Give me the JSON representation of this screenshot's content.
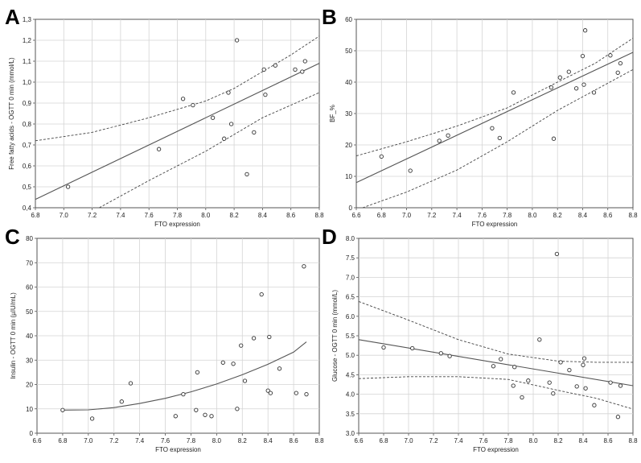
{
  "chart_data": [
    {
      "panel": "A",
      "type": "scatter",
      "xlabel": "FTO expression",
      "ylabel": "Free fatty acids - OGTT 0 min (mmol/L)",
      "xlim": [
        6.8,
        8.8
      ],
      "ylim": [
        0.4,
        1.3
      ],
      "xticks": [
        "6.8",
        "7.0",
        "7.2",
        "7.4",
        "7.6",
        "7.8",
        "8.0",
        "8.2",
        "8.4",
        "8.6",
        "8.8"
      ],
      "yticks": [
        "0,4",
        "0,5",
        "0,6",
        "0,7",
        "0,8",
        "0,9",
        "1,0",
        "1,1",
        "1,2",
        "1,3"
      ],
      "grid": true,
      "points": [
        {
          "x": 7.03,
          "y": 0.5
        },
        {
          "x": 7.67,
          "y": 0.68
        },
        {
          "x": 7.84,
          "y": 0.92
        },
        {
          "x": 7.91,
          "y": 0.89
        },
        {
          "x": 8.05,
          "y": 0.83
        },
        {
          "x": 8.13,
          "y": 0.73
        },
        {
          "x": 8.16,
          "y": 0.95
        },
        {
          "x": 8.18,
          "y": 0.8
        },
        {
          "x": 8.22,
          "y": 1.2
        },
        {
          "x": 8.29,
          "y": 0.56
        },
        {
          "x": 8.34,
          "y": 0.76
        },
        {
          "x": 8.41,
          "y": 1.06
        },
        {
          "x": 8.42,
          "y": 0.94
        },
        {
          "x": 8.49,
          "y": 1.08
        },
        {
          "x": 8.63,
          "y": 1.06
        },
        {
          "x": 8.68,
          "y": 1.05
        },
        {
          "x": 8.7,
          "y": 1.1
        }
      ],
      "fit": {
        "x": [
          6.8,
          8.8
        ],
        "y": [
          0.44,
          1.09
        ]
      },
      "ci_upper": {
        "x": [
          6.8,
          7.2,
          7.6,
          8.0,
          8.2,
          8.4,
          8.6,
          8.8
        ],
        "y": [
          0.72,
          0.76,
          0.83,
          0.91,
          0.97,
          1.05,
          1.13,
          1.22
        ]
      },
      "ci_lower": {
        "x": [
          7.25,
          7.6,
          8.0,
          8.2,
          8.4,
          8.6,
          8.8
        ],
        "y": [
          0.4,
          0.53,
          0.67,
          0.75,
          0.83,
          0.89,
          0.95
        ]
      }
    },
    {
      "panel": "B",
      "type": "scatter",
      "xlabel": "FTO expression",
      "ylabel": "BF_%",
      "xlim": [
        6.6,
        8.8
      ],
      "ylim": [
        0,
        60
      ],
      "xticks": [
        "6.6",
        "6.8",
        "7.0",
        "7.2",
        "7.4",
        "7.6",
        "7.8",
        "8.0",
        "8.2",
        "8.4",
        "8.6",
        "8.8"
      ],
      "yticks": [
        "0",
        "10",
        "20",
        "30",
        "40",
        "50",
        "60"
      ],
      "grid": true,
      "points": [
        {
          "x": 6.8,
          "y": 16.3
        },
        {
          "x": 7.03,
          "y": 11.8
        },
        {
          "x": 7.26,
          "y": 21.3
        },
        {
          "x": 7.33,
          "y": 23.0
        },
        {
          "x": 7.68,
          "y": 25.3
        },
        {
          "x": 7.74,
          "y": 22.2
        },
        {
          "x": 7.85,
          "y": 36.7
        },
        {
          "x": 8.15,
          "y": 38.3
        },
        {
          "x": 8.17,
          "y": 22.0
        },
        {
          "x": 8.22,
          "y": 41.5
        },
        {
          "x": 8.29,
          "y": 43.3
        },
        {
          "x": 8.35,
          "y": 38.0
        },
        {
          "x": 8.4,
          "y": 48.3
        },
        {
          "x": 8.41,
          "y": 39.2
        },
        {
          "x": 8.42,
          "y": 56.5
        },
        {
          "x": 8.49,
          "y": 36.7
        },
        {
          "x": 8.62,
          "y": 48.5
        },
        {
          "x": 8.68,
          "y": 43.0
        },
        {
          "x": 8.7,
          "y": 46.0
        }
      ],
      "fit": {
        "x": [
          6.6,
          8.8
        ],
        "y": [
          8.0,
          49.5
        ]
      },
      "ci_upper": {
        "x": [
          6.6,
          7.0,
          7.4,
          7.8,
          8.2,
          8.5,
          8.8
        ],
        "y": [
          16.5,
          21.0,
          26.0,
          31.8,
          40.0,
          46.0,
          54.0
        ]
      },
      "ci_lower": {
        "x": [
          6.65,
          7.0,
          7.4,
          7.8,
          8.2,
          8.5,
          8.8
        ],
        "y": [
          0.0,
          5.0,
          12.0,
          21.0,
          31.0,
          37.5,
          44.0
        ]
      }
    },
    {
      "panel": "C",
      "type": "scatter",
      "xlabel": "FTO expression",
      "ylabel": "Insulin - OGTT 0 min (µIU/mL)",
      "xlim": [
        6.6,
        8.8
      ],
      "ylim": [
        0,
        80
      ],
      "xticks": [
        "6.6",
        "6.8",
        "7.0",
        "7.2",
        "7.4",
        "7.6",
        "7.8",
        "8.0",
        "8.2",
        "8.4",
        "8.6",
        "8.8"
      ],
      "yticks": [
        "0",
        "10",
        "20",
        "30",
        "40",
        "50",
        "60",
        "70",
        "80"
      ],
      "grid": true,
      "points": [
        {
          "x": 6.8,
          "y": 9.5
        },
        {
          "x": 7.03,
          "y": 6.0
        },
        {
          "x": 7.26,
          "y": 13.0
        },
        {
          "x": 7.33,
          "y": 20.5
        },
        {
          "x": 7.68,
          "y": 7.0
        },
        {
          "x": 7.74,
          "y": 16.0
        },
        {
          "x": 7.84,
          "y": 9.5
        },
        {
          "x": 7.85,
          "y": 25.0
        },
        {
          "x": 7.91,
          "y": 7.5
        },
        {
          "x": 7.96,
          "y": 7.0
        },
        {
          "x": 8.05,
          "y": 29.0
        },
        {
          "x": 8.13,
          "y": 28.5
        },
        {
          "x": 8.16,
          "y": 10.0
        },
        {
          "x": 8.19,
          "y": 36.0
        },
        {
          "x": 8.22,
          "y": 21.5
        },
        {
          "x": 8.29,
          "y": 39.0
        },
        {
          "x": 8.35,
          "y": 57.0
        },
        {
          "x": 8.4,
          "y": 17.5
        },
        {
          "x": 8.41,
          "y": 39.5
        },
        {
          "x": 8.42,
          "y": 16.5
        },
        {
          "x": 8.49,
          "y": 26.5
        },
        {
          "x": 8.62,
          "y": 16.5
        },
        {
          "x": 8.68,
          "y": 68.5
        },
        {
          "x": 8.7,
          "y": 16.0
        }
      ],
      "fit": {
        "x": [
          6.8,
          7.0,
          7.2,
          7.4,
          7.6,
          7.8,
          8.0,
          8.2,
          8.4,
          8.6,
          8.7
        ],
        "y": [
          9.5,
          9.6,
          10.5,
          12.2,
          14.3,
          17.0,
          20.2,
          24.0,
          28.3,
          33.3,
          37.5
        ]
      }
    },
    {
      "panel": "D",
      "type": "scatter",
      "xlabel": "FTO expression",
      "ylabel": "Glucose - OGTT 0 min (mmol/L)",
      "xlim": [
        6.6,
        8.8
      ],
      "ylim": [
        3.0,
        8.0
      ],
      "xticks": [
        "6.6",
        "6.8",
        "7.0",
        "7.2",
        "7.4",
        "7.6",
        "7.8",
        "8.0",
        "8.2",
        "8.4",
        "8.6",
        "8.8"
      ],
      "yticks": [
        "3.0",
        "3.5",
        "4.0",
        "4.5",
        "5.0",
        "5.5",
        "6.0",
        "6.5",
        "7.0",
        "7.5",
        "8.0"
      ],
      "grid": true,
      "points": [
        {
          "x": 6.8,
          "y": 5.2
        },
        {
          "x": 7.03,
          "y": 5.18
        },
        {
          "x": 7.26,
          "y": 5.05
        },
        {
          "x": 7.33,
          "y": 4.98
        },
        {
          "x": 7.68,
          "y": 4.72
        },
        {
          "x": 7.74,
          "y": 4.9
        },
        {
          "x": 7.84,
          "y": 4.22
        },
        {
          "x": 7.85,
          "y": 4.7
        },
        {
          "x": 7.91,
          "y": 3.92
        },
        {
          "x": 7.96,
          "y": 4.35
        },
        {
          "x": 8.05,
          "y": 5.4
        },
        {
          "x": 8.13,
          "y": 4.3
        },
        {
          "x": 8.16,
          "y": 4.02
        },
        {
          "x": 8.19,
          "y": 7.6
        },
        {
          "x": 8.22,
          "y": 4.82
        },
        {
          "x": 8.29,
          "y": 4.62
        },
        {
          "x": 8.35,
          "y": 4.2
        },
        {
          "x": 8.4,
          "y": 4.75
        },
        {
          "x": 8.41,
          "y": 4.92
        },
        {
          "x": 8.42,
          "y": 4.15
        },
        {
          "x": 8.49,
          "y": 3.72
        },
        {
          "x": 8.62,
          "y": 4.3
        },
        {
          "x": 8.68,
          "y": 3.42
        },
        {
          "x": 8.7,
          "y": 4.22
        }
      ],
      "fit": {
        "x": [
          6.6,
          8.8
        ],
        "y": [
          5.4,
          4.22
        ]
      },
      "ci_upper": {
        "x": [
          6.6,
          7.0,
          7.4,
          7.8,
          8.2,
          8.5,
          8.8
        ],
        "y": [
          6.38,
          5.9,
          5.4,
          5.03,
          4.85,
          4.82,
          4.82
        ]
      },
      "ci_lower": {
        "x": [
          6.6,
          7.0,
          7.4,
          7.8,
          8.2,
          8.5,
          8.8
        ],
        "y": [
          4.4,
          4.45,
          4.45,
          4.38,
          4.1,
          3.9,
          3.62
        ]
      }
    }
  ]
}
